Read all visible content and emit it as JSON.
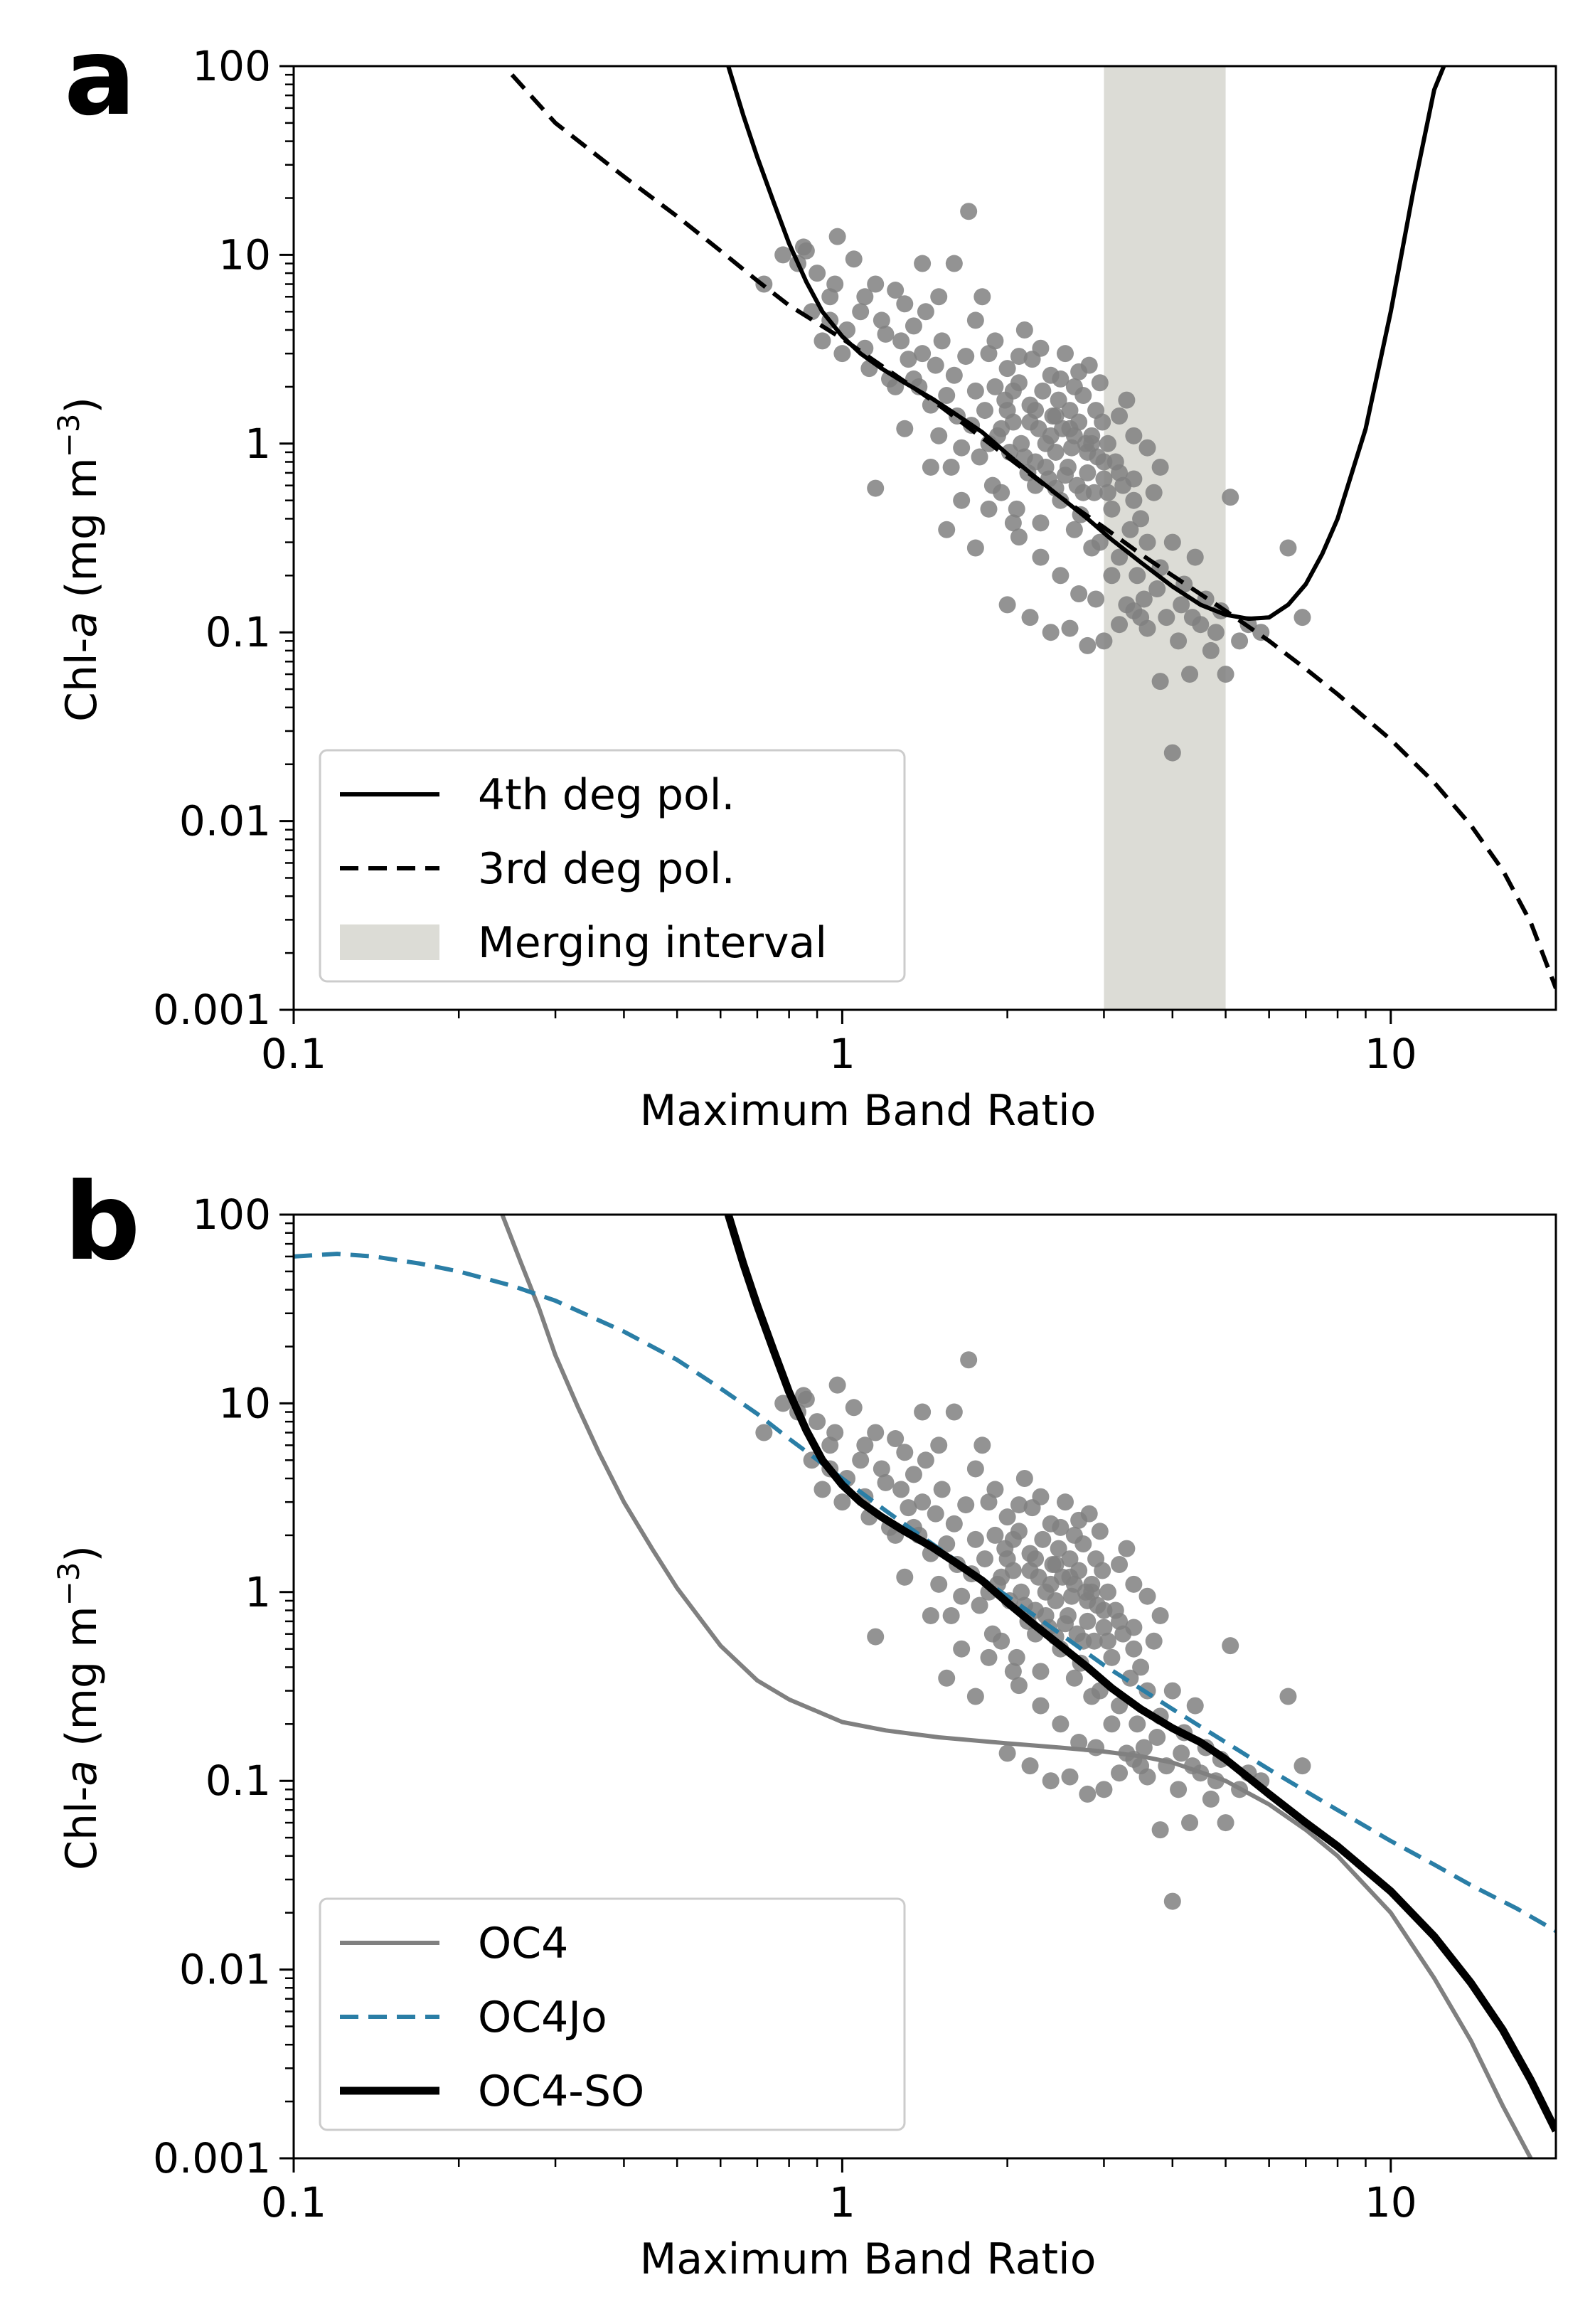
{
  "chart_data": [
    {
      "panel": "a",
      "type": "scatter",
      "xlabel": "Maximum Band Ratio",
      "ylabel_prefix": "Chl-",
      "ylabel_italic": "a",
      "ylabel_units": " (mg m",
      "ylabel_exp": "−3",
      "ylabel_close": ")",
      "xscale": "log",
      "yscale": "log",
      "xlim": [
        0.1,
        20
      ],
      "ylim": [
        0.001,
        100
      ],
      "xticks": [
        {
          "value": 0.1,
          "label": "0.1"
        },
        {
          "value": 1,
          "label": "1"
        },
        {
          "value": 10,
          "label": "10"
        }
      ],
      "yticks": [
        {
          "value": 0.001,
          "label": "0.001"
        },
        {
          "value": 0.01,
          "label": "0.01"
        },
        {
          "value": 0.1,
          "label": "0.1"
        },
        {
          "value": 1,
          "label": "1"
        },
        {
          "value": 10,
          "label": "10"
        },
        {
          "value": 100,
          "label": "100"
        }
      ],
      "legend_position": "lower-left",
      "merging_interval": {
        "x0": 3.0,
        "x1": 5.0,
        "color": "#dcdcd6"
      },
      "series": [
        {
          "name": "4th deg pol.",
          "style": "solid",
          "color": "#000000",
          "width": 6,
          "x": [
            0.62,
            0.66,
            0.7,
            0.75,
            0.8,
            0.86,
            0.92,
            1.0,
            1.08,
            1.18,
            1.3,
            1.45,
            1.6,
            1.8,
            2.0,
            2.2,
            2.5,
            2.8,
            3.1,
            3.5,
            4.0,
            4.5,
            5.0,
            5.5,
            6.0,
            6.5,
            7.0,
            7.5,
            8.0,
            9.0,
            10.0,
            11.0,
            12.0,
            12.5
          ],
          "y": [
            100,
            55,
            33,
            19,
            11.5,
            7.2,
            5.0,
            3.7,
            3.0,
            2.5,
            2.1,
            1.75,
            1.45,
            1.15,
            0.88,
            0.7,
            0.52,
            0.4,
            0.31,
            0.235,
            0.175,
            0.14,
            0.124,
            0.118,
            0.12,
            0.14,
            0.18,
            0.26,
            0.4,
            1.2,
            5.0,
            22,
            75,
            100
          ]
        },
        {
          "name": "3rd deg pol.",
          "style": "dashed",
          "color": "#000000",
          "width": 6,
          "x": [
            0.25,
            0.3,
            0.4,
            0.5,
            0.6,
            0.7,
            0.8,
            1.0,
            1.2,
            1.5,
            2.0,
            2.5,
            3.0,
            3.5,
            4.0,
            5.0,
            6.0,
            7.0,
            8.0,
            10.0,
            12.0,
            14.0,
            16.0,
            18.0,
            20.0
          ],
          "y": [
            90,
            50,
            26,
            16,
            10.5,
            7.3,
            5.4,
            3.6,
            2.5,
            1.6,
            0.85,
            0.52,
            0.36,
            0.26,
            0.2,
            0.13,
            0.09,
            0.064,
            0.047,
            0.027,
            0.016,
            0.0095,
            0.0055,
            0.0029,
            0.0013
          ]
        }
      ],
      "scatter": {
        "color": "#808080",
        "opacity": 0.85
      }
    },
    {
      "panel": "b",
      "type": "scatter",
      "xlabel": "Maximum Band Ratio",
      "ylabel_prefix": "Chl-",
      "ylabel_italic": "a",
      "ylabel_units": " (mg m",
      "ylabel_exp": "−3",
      "ylabel_close": ")",
      "xscale": "log",
      "yscale": "log",
      "xlim": [
        0.1,
        20
      ],
      "ylim": [
        0.001,
        100
      ],
      "xticks": [
        {
          "value": 0.1,
          "label": "0.1"
        },
        {
          "value": 1,
          "label": "1"
        },
        {
          "value": 10,
          "label": "10"
        }
      ],
      "yticks": [
        {
          "value": 0.001,
          "label": "0.001"
        },
        {
          "value": 0.01,
          "label": "0.01"
        },
        {
          "value": 0.1,
          "label": "0.1"
        },
        {
          "value": 1,
          "label": "1"
        },
        {
          "value": 10,
          "label": "10"
        },
        {
          "value": 100,
          "label": "100"
        }
      ],
      "legend_position": "lower-left",
      "series": [
        {
          "name": "OC4",
          "style": "solid",
          "color": "#808080",
          "width": 6,
          "x": [
            0.24,
            0.26,
            0.28,
            0.3,
            0.33,
            0.36,
            0.4,
            0.45,
            0.5,
            0.6,
            0.7,
            0.8,
            1.0,
            1.2,
            1.5,
            2.0,
            2.5,
            3.0,
            3.5,
            4.0,
            5.0,
            6.0,
            7.0,
            8.0,
            10.0,
            12.0,
            14.0,
            16.0,
            18.0
          ],
          "y": [
            100,
            55,
            32,
            18,
            9.5,
            5.5,
            3.0,
            1.7,
            1.05,
            0.52,
            0.34,
            0.27,
            0.205,
            0.185,
            0.17,
            0.158,
            0.15,
            0.143,
            0.135,
            0.125,
            0.1,
            0.075,
            0.055,
            0.04,
            0.02,
            0.009,
            0.0042,
            0.0019,
            0.001
          ]
        },
        {
          "name": "OC4Jo",
          "style": "dashed",
          "color": "#2a7ea6",
          "width": 6,
          "x": [
            0.1,
            0.12,
            0.14,
            0.17,
            0.2,
            0.25,
            0.3,
            0.4,
            0.5,
            0.6,
            0.7,
            0.8,
            1.0,
            1.2,
            1.5,
            2.0,
            2.5,
            3.0,
            4.0,
            5.0,
            6.0,
            7.0,
            8.0,
            10.0,
            12.0,
            14.0,
            17.0,
            20.0
          ],
          "y": [
            60,
            62,
            60,
            55,
            50,
            42,
            35,
            24,
            17,
            12,
            8.8,
            6.5,
            4.0,
            2.7,
            1.7,
            0.95,
            0.6,
            0.41,
            0.24,
            0.16,
            0.115,
            0.088,
            0.07,
            0.048,
            0.036,
            0.028,
            0.021,
            0.016
          ]
        },
        {
          "name": "OC4-SO",
          "style": "solid",
          "color": "#000000",
          "width": 11,
          "x": [
            0.62,
            0.66,
            0.7,
            0.75,
            0.8,
            0.86,
            0.92,
            1.0,
            1.08,
            1.18,
            1.3,
            1.45,
            1.6,
            1.8,
            2.0,
            2.2,
            2.5,
            2.8,
            3.1,
            3.5,
            4.0,
            4.5,
            5.0,
            6.0,
            7.0,
            8.0,
            10.0,
            12.0,
            14.0,
            16.0,
            18.0,
            20.0
          ],
          "y": [
            100,
            55,
            33,
            19,
            11.5,
            7.2,
            5.0,
            3.7,
            3.0,
            2.5,
            2.1,
            1.75,
            1.45,
            1.15,
            0.88,
            0.7,
            0.52,
            0.4,
            0.31,
            0.24,
            0.19,
            0.16,
            0.13,
            0.085,
            0.06,
            0.045,
            0.026,
            0.015,
            0.0085,
            0.0048,
            0.0026,
            0.0014
          ]
        }
      ],
      "scatter": {
        "color": "#808080",
        "opacity": 0.85
      }
    }
  ],
  "points": [
    [
      0.72,
      7
    ],
    [
      0.78,
      10
    ],
    [
      0.83,
      9
    ],
    [
      0.85,
      11
    ],
    [
      0.86,
      10.5
    ],
    [
      0.88,
      5.0
    ],
    [
      0.9,
      8
    ],
    [
      0.92,
      3.5
    ],
    [
      0.95,
      4.5
    ],
    [
      0.97,
      7
    ],
    [
      0.98,
      12.5
    ],
    [
      1.0,
      3.0
    ],
    [
      1.02,
      4.0
    ],
    [
      1.05,
      9.5
    ],
    [
      1.08,
      5
    ],
    [
      1.1,
      3.2
    ],
    [
      1.12,
      2.5
    ],
    [
      1.15,
      7
    ],
    [
      1.18,
      4.5
    ],
    [
      1.2,
      3.8
    ],
    [
      1.22,
      2.2
    ],
    [
      1.25,
      6.5
    ],
    [
      1.28,
      3.5
    ],
    [
      1.3,
      5.5
    ],
    [
      1.32,
      2.8
    ],
    [
      1.35,
      4.2
    ],
    [
      1.38,
      2.0
    ],
    [
      1.4,
      3.0
    ],
    [
      1.42,
      5.0
    ],
    [
      1.45,
      1.6
    ],
    [
      1.48,
      2.6
    ],
    [
      1.5,
      1.1
    ],
    [
      1.52,
      3.5
    ],
    [
      1.55,
      1.8
    ],
    [
      1.58,
      0.75
    ],
    [
      1.6,
      2.3
    ],
    [
      1.62,
      1.4
    ],
    [
      1.65,
      0.95
    ],
    [
      1.68,
      2.9
    ],
    [
      1.7,
      17
    ],
    [
      1.72,
      1.25
    ],
    [
      1.75,
      1.9
    ],
    [
      1.78,
      0.85
    ],
    [
      1.8,
      6.0
    ],
    [
      1.82,
      1.5
    ],
    [
      1.85,
      3.0
    ],
    [
      1.88,
      0.6
    ],
    [
      1.9,
      2.0
    ],
    [
      1.92,
      1.1
    ],
    [
      1.95,
      0.55
    ],
    [
      1.98,
      1.7
    ],
    [
      2.0,
      2.5
    ],
    [
      2.02,
      0.9
    ],
    [
      2.05,
      1.3
    ],
    [
      2.08,
      0.45
    ],
    [
      2.1,
      2.1
    ],
    [
      2.12,
      1.0
    ],
    [
      2.15,
      4.0
    ],
    [
      2.18,
      0.7
    ],
    [
      2.2,
      1.6
    ],
    [
      2.22,
      2.8
    ],
    [
      2.25,
      0.8
    ],
    [
      2.28,
      1.2
    ],
    [
      2.3,
      0.38
    ],
    [
      2.32,
      1.9
    ],
    [
      2.35,
      1.0
    ],
    [
      2.38,
      0.65
    ],
    [
      2.4,
      2.3
    ],
    [
      2.42,
      1.4
    ],
    [
      2.45,
      0.9
    ],
    [
      2.48,
      1.7
    ],
    [
      2.5,
      0.5
    ],
    [
      2.52,
      1.2
    ],
    [
      2.55,
      3.0
    ],
    [
      2.58,
      0.75
    ],
    [
      2.6,
      1.5
    ],
    [
      2.62,
      0.95
    ],
    [
      2.65,
      2.0
    ],
    [
      2.68,
      0.6
    ],
    [
      2.7,
      1.3
    ],
    [
      2.72,
      0.42
    ],
    [
      2.75,
      1.8
    ],
    [
      2.78,
      1.0
    ],
    [
      2.8,
      0.7
    ],
    [
      2.82,
      2.6
    ],
    [
      2.85,
      1.1
    ],
    [
      2.88,
      0.55
    ],
    [
      2.9,
      1.5
    ],
    [
      2.92,
      0.85
    ],
    [
      2.95,
      0.3
    ],
    [
      2.98,
      1.3
    ],
    [
      3.0,
      0.65
    ],
    [
      3.05,
      1.0
    ],
    [
      3.1,
      0.45
    ],
    [
      3.15,
      0.8
    ],
    [
      3.2,
      0.25
    ],
    [
      3.25,
      0.6
    ],
    [
      3.3,
      1.7
    ],
    [
      3.35,
      0.35
    ],
    [
      3.4,
      0.5
    ],
    [
      3.45,
      0.2
    ],
    [
      3.5,
      0.4
    ],
    [
      3.55,
      0.15
    ],
    [
      3.6,
      0.3
    ],
    [
      3.7,
      0.55
    ],
    [
      3.8,
      0.22
    ],
    [
      3.9,
      0.12
    ],
    [
      4.0,
      0.3
    ],
    [
      4.1,
      0.09
    ],
    [
      4.2,
      0.18
    ],
    [
      4.3,
      0.06
    ],
    [
      4.4,
      0.25
    ],
    [
      4.5,
      0.11
    ],
    [
      4.6,
      0.15
    ],
    [
      4.7,
      0.08
    ],
    [
      4.8,
      0.1
    ],
    [
      4.9,
      0.13
    ],
    [
      5.0,
      0.06
    ],
    [
      5.1,
      0.52
    ],
    [
      5.3,
      0.09
    ],
    [
      5.5,
      0.11
    ],
    [
      5.8,
      0.1
    ],
    [
      6.5,
      0.28
    ],
    [
      6.9,
      0.12
    ],
    [
      1.15,
      0.58
    ],
    [
      1.35,
      2.2
    ],
    [
      1.55,
      0.35
    ],
    [
      1.75,
      0.28
    ],
    [
      2.0,
      0.14
    ],
    [
      2.2,
      0.12
    ],
    [
      2.4,
      0.1
    ],
    [
      2.6,
      0.105
    ],
    [
      2.8,
      0.085
    ],
    [
      3.0,
      0.09
    ],
    [
      3.2,
      0.11
    ],
    [
      3.4,
      0.13
    ],
    [
      3.6,
      0.105
    ],
    [
      3.8,
      0.055
    ],
    [
      4.0,
      0.023
    ],
    [
      2.1,
      0.32
    ],
    [
      2.3,
      0.25
    ],
    [
      2.5,
      0.2
    ],
    [
      2.7,
      0.16
    ],
    [
      2.9,
      0.15
    ],
    [
      1.3,
      1.2
    ],
    [
      1.45,
      0.75
    ],
    [
      1.65,
      0.5
    ],
    [
      1.85,
      0.45
    ],
    [
      2.05,
      0.38
    ],
    [
      2.25,
      0.6
    ],
    [
      2.45,
      0.58
    ],
    [
      2.65,
      0.35
    ],
    [
      2.85,
      0.28
    ],
    [
      3.1,
      0.2
    ],
    [
      3.3,
      0.14
    ],
    [
      3.5,
      0.12
    ],
    [
      3.75,
      0.17
    ],
    [
      4.15,
      0.14
    ],
    [
      4.35,
      0.12
    ],
    [
      1.9,
      3.5
    ],
    [
      2.1,
      2.9
    ],
    [
      2.3,
      3.2
    ],
    [
      2.5,
      2.2
    ],
    [
      2.7,
      2.4
    ],
    [
      2.95,
      2.1
    ],
    [
      3.2,
      1.4
    ],
    [
      3.4,
      1.1
    ],
    [
      3.6,
      0.95
    ],
    [
      3.8,
      0.75
    ],
    [
      1.6,
      9.0
    ],
    [
      1.75,
      4.5
    ],
    [
      1.5,
      6.0
    ],
    [
      1.4,
      9.0
    ],
    [
      1.25,
      2.0
    ],
    [
      1.1,
      6.0
    ],
    [
      0.95,
      6.0
    ],
    [
      2.0,
      1.5
    ],
    [
      2.2,
      1.3
    ],
    [
      2.4,
      1.1
    ],
    [
      2.6,
      1.2
    ],
    [
      2.8,
      0.9
    ],
    [
      3.0,
      0.8
    ],
    [
      3.2,
      0.7
    ],
    [
      3.4,
      0.65
    ],
    [
      2.15,
      0.85
    ],
    [
      2.35,
      0.75
    ],
    [
      2.55,
      0.68
    ],
    [
      2.75,
      0.55
    ],
    [
      1.95,
      1.2
    ],
    [
      1.85,
      1.0
    ],
    [
      2.05,
      1.9
    ],
    [
      2.25,
      1.5
    ],
    [
      2.45,
      1.4
    ],
    [
      2.65,
      1.1
    ],
    [
      2.85,
      1.0
    ],
    [
      3.05,
      0.55
    ]
  ],
  "panel_labels": [
    "a",
    "b"
  ]
}
